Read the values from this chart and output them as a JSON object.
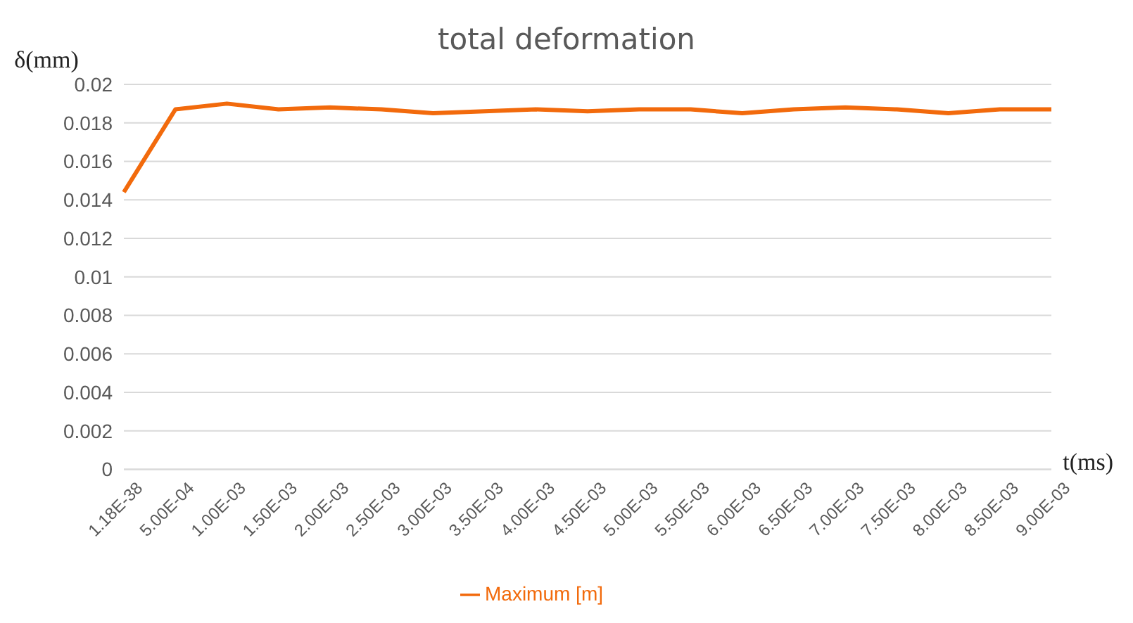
{
  "chart_data": {
    "type": "line",
    "title": "total deformation",
    "ylabel": "δ(mm)",
    "xlabel": "t(ms)",
    "categories": [
      "1.18E-38",
      "5.00E-04",
      "1.00E-03",
      "1.50E-03",
      "2.00E-03",
      "2.50E-03",
      "3.00E-03",
      "3.50E-03",
      "4.00E-03",
      "4.50E-03",
      "5.00E-03",
      "5.50E-03",
      "6.00E-03",
      "6.50E-03",
      "7.00E-03",
      "7.50E-03",
      "8.00E-03",
      "8.50E-03",
      "9.00E-03"
    ],
    "series": [
      {
        "name": "Maximum [m]",
        "color": "#f26a0c",
        "values": [
          0.0144,
          0.0187,
          0.019,
          0.0187,
          0.0188,
          0.0187,
          0.0185,
          0.0186,
          0.0187,
          0.0186,
          0.0187,
          0.0187,
          0.0185,
          0.0187,
          0.0188,
          0.0187,
          0.0185,
          0.0187,
          0.0187
        ]
      }
    ],
    "ylim": [
      0,
      0.02
    ],
    "yticks": [
      0,
      0.002,
      0.004,
      0.006,
      0.008,
      0.01,
      0.012,
      0.014,
      0.016,
      0.018,
      0.02
    ],
    "grid": "y",
    "legend": "bottom",
    "marker": "none",
    "line_style": "solid"
  }
}
